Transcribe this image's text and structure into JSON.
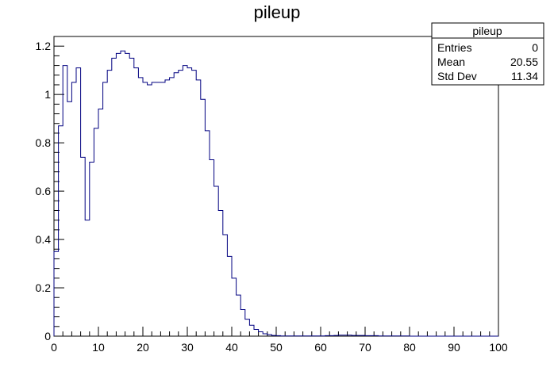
{
  "chart_data": {
    "type": "bar",
    "style": "step-histogram",
    "title": "pileup",
    "xlabel": "",
    "ylabel": "",
    "xlim": [
      0,
      100
    ],
    "ylim": [
      0,
      1.24
    ],
    "bin_width": 1,
    "x_ticks": [
      0,
      10,
      20,
      30,
      40,
      50,
      60,
      70,
      80,
      90,
      100
    ],
    "x_tick_labels": [
      "0",
      "10",
      "20",
      "30",
      "40",
      "50",
      "60",
      "70",
      "80",
      "90",
      "100"
    ],
    "y_ticks": [
      0,
      0.2,
      0.4,
      0.6,
      0.8,
      1,
      1.2
    ],
    "y_tick_labels": [
      "0",
      "0.2",
      "0.4",
      "0.6",
      "0.8",
      "1",
      "1.2"
    ],
    "grid": false,
    "line_color": "#000080",
    "series": [
      {
        "values": [
          0.35,
          0.87,
          1.12,
          0.97,
          1.05,
          1.11,
          0.74,
          0.48,
          0.72,
          0.86,
          0.94,
          1.05,
          1.1,
          1.15,
          1.17,
          1.18,
          1.17,
          1.15,
          1.11,
          1.07,
          1.05,
          1.04,
          1.05,
          1.05,
          1.05,
          1.06,
          1.07,
          1.09,
          1.1,
          1.12,
          1.11,
          1.1,
          1.06,
          0.98,
          0.85,
          0.73,
          0.62,
          0.52,
          0.42,
          0.33,
          0.24,
          0.17,
          0.11,
          0.07,
          0.045,
          0.028,
          0.018,
          0.01,
          0.006,
          0.003,
          0.002,
          0.001,
          0.001,
          0.001,
          0.001,
          0.001,
          0.001,
          0.001,
          0.001,
          0.001,
          0.001,
          0.002,
          0.002,
          0.003,
          0.004,
          0.004,
          0.004,
          0.003,
          0.003,
          0.003,
          0.002,
          0.002,
          0.002,
          0.001,
          0.001,
          0.001,
          0.001,
          0.001,
          0.001,
          0.001,
          0,
          0,
          0,
          0,
          0,
          0,
          0,
          0,
          0,
          0,
          0,
          0,
          0,
          0,
          0,
          0,
          0,
          0,
          0,
          0
        ]
      }
    ]
  },
  "stats_box": {
    "title": "pileup",
    "rows": [
      {
        "label": "Entries",
        "value": "0"
      },
      {
        "label": "Mean",
        "value": "20.55"
      },
      {
        "label": "Std Dev",
        "value": "11.34"
      }
    ]
  }
}
